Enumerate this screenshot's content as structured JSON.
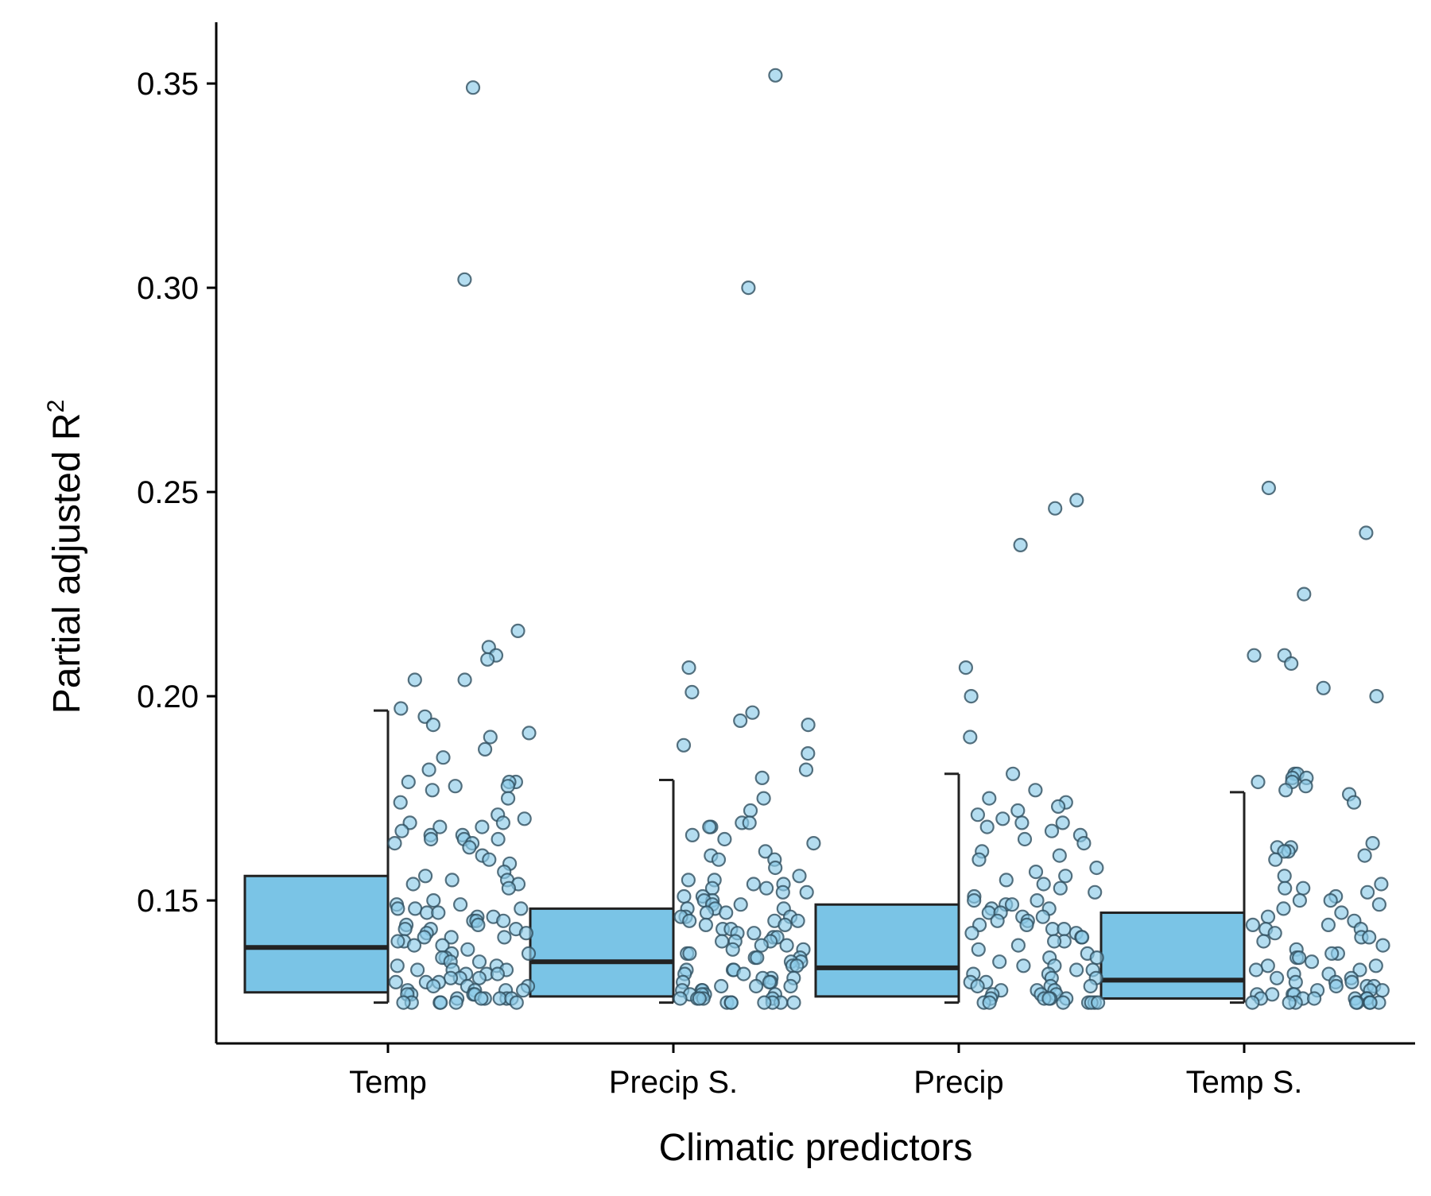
{
  "chart_data": {
    "type": "boxplot",
    "xlabel": "Climatic predictors",
    "ylabel": "Partial adjusted R",
    "ylabel_superscript": "2",
    "ylim": [
      0.115,
      0.365
    ],
    "yticks": [
      0.15,
      0.2,
      0.25,
      0.3,
      0.35
    ],
    "ytick_labels": [
      "0.15",
      "0.20",
      "0.25",
      "0.30",
      "0.35"
    ],
    "grid": false,
    "legend": "none",
    "colors": {
      "box_fill": "#7ac4e6",
      "point_fill": "#8ccbe8",
      "outline": "#222222"
    },
    "categories": [
      "Temp",
      "Precip S.",
      "Precip",
      "Temp S."
    ],
    "boxes": [
      {
        "category": "Temp",
        "whisker_low": 0.125,
        "q1": 0.1275,
        "median": 0.1385,
        "q3": 0.156,
        "whisker_high": 0.1965
      },
      {
        "category": "Precip S.",
        "whisker_low": 0.125,
        "q1": 0.1265,
        "median": 0.135,
        "q3": 0.148,
        "whisker_high": 0.1795
      },
      {
        "category": "Precip",
        "whisker_low": 0.125,
        "q1": 0.1265,
        "median": 0.1335,
        "q3": 0.149,
        "whisker_high": 0.181
      },
      {
        "category": "Temp S.",
        "whisker_low": 0.125,
        "q1": 0.126,
        "median": 0.1305,
        "q3": 0.147,
        "whisker_high": 0.1765
      }
    ],
    "points": [
      [
        0.349,
        0.302,
        0.216,
        0.212,
        0.21,
        0.209,
        0.204,
        0.204,
        0.197,
        0.195,
        0.193,
        0.191,
        0.19,
        0.187,
        0.185,
        0.182,
        0.179,
        0.179,
        0.179,
        0.178,
        0.178,
        0.177,
        0.175,
        0.174,
        0.171,
        0.17,
        0.169,
        0.169,
        0.168,
        0.168,
        0.167,
        0.166,
        0.166,
        0.165,
        0.165,
        0.165,
        0.164,
        0.164,
        0.163,
        0.161,
        0.16,
        0.159,
        0.157,
        0.156,
        0.155,
        0.155,
        0.154,
        0.154,
        0.153,
        0.15,
        0.149,
        0.149,
        0.148,
        0.148,
        0.148,
        0.147,
        0.147,
        0.146,
        0.146,
        0.145,
        0.145,
        0.145,
        0.144,
        0.144,
        0.143,
        0.143,
        0.143,
        0.142,
        0.142,
        0.141,
        0.141,
        0.141,
        0.14,
        0.14,
        0.139,
        0.139,
        0.138,
        0.137,
        0.137,
        0.136,
        0.136,
        0.135,
        0.135,
        0.134,
        0.134,
        0.133,
        0.133,
        0.133,
        0.132,
        0.132,
        0.132,
        0.131,
        0.131,
        0.131,
        0.13,
        0.13,
        0.13,
        0.129,
        0.129,
        0.129,
        0.128,
        0.128,
        0.128,
        0.128,
        0.127,
        0.127,
        0.127,
        0.127,
        0.126,
        0.126,
        0.126,
        0.126,
        0.126,
        0.126,
        0.125,
        0.125,
        0.125,
        0.125,
        0.125,
        0.125
      ],
      [
        0.352,
        0.3,
        0.207,
        0.201,
        0.196,
        0.194,
        0.193,
        0.188,
        0.186,
        0.182,
        0.18,
        0.175,
        0.172,
        0.169,
        0.169,
        0.168,
        0.168,
        0.166,
        0.165,
        0.164,
        0.162,
        0.161,
        0.16,
        0.16,
        0.158,
        0.156,
        0.155,
        0.155,
        0.154,
        0.154,
        0.153,
        0.153,
        0.152,
        0.152,
        0.151,
        0.151,
        0.15,
        0.15,
        0.149,
        0.149,
        0.148,
        0.148,
        0.148,
        0.147,
        0.147,
        0.146,
        0.146,
        0.146,
        0.145,
        0.145,
        0.145,
        0.144,
        0.144,
        0.143,
        0.143,
        0.142,
        0.142,
        0.141,
        0.141,
        0.14,
        0.14,
        0.14,
        0.139,
        0.139,
        0.138,
        0.138,
        0.137,
        0.137,
        0.136,
        0.136,
        0.136,
        0.135,
        0.135,
        0.134,
        0.134,
        0.133,
        0.133,
        0.133,
        0.132,
        0.132,
        0.131,
        0.131,
        0.131,
        0.13,
        0.13,
        0.13,
        0.129,
        0.129,
        0.129,
        0.128,
        0.128,
        0.128,
        0.127,
        0.127,
        0.127,
        0.127,
        0.126,
        0.126,
        0.126,
        0.126,
        0.126,
        0.125,
        0.125,
        0.125,
        0.125,
        0.125,
        0.125,
        0.125
      ],
      [
        0.248,
        0.246,
        0.237,
        0.207,
        0.2,
        0.19,
        0.181,
        0.177,
        0.175,
        0.174,
        0.173,
        0.172,
        0.171,
        0.17,
        0.169,
        0.169,
        0.168,
        0.167,
        0.166,
        0.165,
        0.164,
        0.162,
        0.161,
        0.16,
        0.158,
        0.157,
        0.156,
        0.155,
        0.154,
        0.153,
        0.152,
        0.151,
        0.15,
        0.15,
        0.149,
        0.149,
        0.148,
        0.148,
        0.147,
        0.147,
        0.146,
        0.146,
        0.145,
        0.145,
        0.144,
        0.144,
        0.143,
        0.143,
        0.142,
        0.142,
        0.141,
        0.141,
        0.14,
        0.14,
        0.139,
        0.138,
        0.137,
        0.136,
        0.136,
        0.135,
        0.134,
        0.134,
        0.133,
        0.133,
        0.132,
        0.132,
        0.131,
        0.131,
        0.13,
        0.13,
        0.129,
        0.129,
        0.129,
        0.128,
        0.128,
        0.128,
        0.127,
        0.127,
        0.127,
        0.126,
        0.126,
        0.126,
        0.126,
        0.126,
        0.125,
        0.125,
        0.125,
        0.125,
        0.125,
        0.125,
        0.125
      ],
      [
        0.251,
        0.24,
        0.225,
        0.21,
        0.21,
        0.208,
        0.202,
        0.2,
        0.181,
        0.181,
        0.18,
        0.18,
        0.179,
        0.179,
        0.178,
        0.177,
        0.176,
        0.174,
        0.164,
        0.163,
        0.163,
        0.162,
        0.162,
        0.161,
        0.16,
        0.156,
        0.154,
        0.153,
        0.153,
        0.152,
        0.151,
        0.15,
        0.15,
        0.149,
        0.148,
        0.147,
        0.146,
        0.145,
        0.144,
        0.144,
        0.143,
        0.143,
        0.142,
        0.141,
        0.141,
        0.14,
        0.139,
        0.138,
        0.137,
        0.137,
        0.136,
        0.136,
        0.135,
        0.134,
        0.134,
        0.133,
        0.133,
        0.132,
        0.132,
        0.131,
        0.131,
        0.13,
        0.13,
        0.13,
        0.129,
        0.129,
        0.129,
        0.128,
        0.128,
        0.128,
        0.127,
        0.127,
        0.127,
        0.127,
        0.126,
        0.126,
        0.126,
        0.126,
        0.126,
        0.126,
        0.125,
        0.125,
        0.125,
        0.125,
        0.125,
        0.125,
        0.125,
        0.125
      ]
    ]
  }
}
